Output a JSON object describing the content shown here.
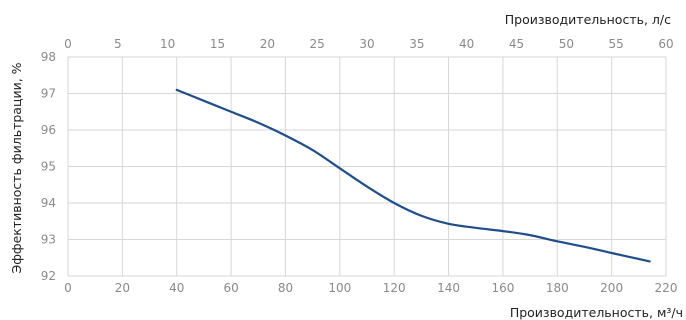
{
  "chart_data": {
    "type": "line",
    "title": "",
    "xlabel": "Производительность, м³/ч",
    "x2label": "Производительность, л/с",
    "ylabel": "Эффективность фильтрации, %",
    "xlim": [
      0,
      220
    ],
    "x2lim": [
      0,
      60
    ],
    "ylim": [
      92,
      98
    ],
    "xticks": [
      0,
      20,
      40,
      60,
      80,
      100,
      120,
      140,
      160,
      180,
      200,
      220
    ],
    "x2ticks": [
      0,
      5,
      10,
      15,
      20,
      25,
      30,
      35,
      40,
      45,
      50,
      55,
      60
    ],
    "yticks": [
      92,
      93,
      94,
      95,
      96,
      97,
      98
    ],
    "grid": true,
    "legend": "none",
    "series": [
      {
        "x": [
          40,
          50,
          60,
          70,
          80,
          90,
          100,
          110,
          120,
          130,
          140,
          150,
          160,
          170,
          180,
          190,
          200,
          214
        ],
        "y": [
          97.1,
          96.8,
          96.5,
          96.2,
          95.85,
          95.45,
          94.95,
          94.45,
          94.0,
          93.65,
          93.43,
          93.32,
          93.23,
          93.12,
          92.95,
          92.8,
          92.63,
          92.4
        ]
      }
    ],
    "colors": {
      "line": "#1f4e8c",
      "grid": "#d6d6d6",
      "tick_text": "#8a8a8a",
      "label_text": "#222222"
    }
  }
}
